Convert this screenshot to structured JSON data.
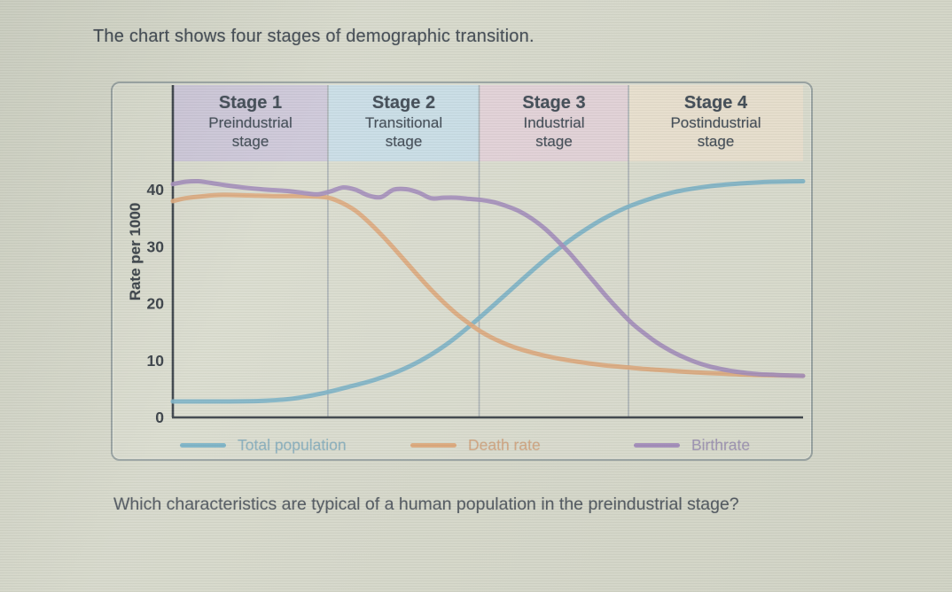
{
  "page": {
    "title": "The chart shows four stages of demographic transition.",
    "question": "Which characteristics are typical of a human population in the preindustrial stage?"
  },
  "chart_data": {
    "type": "line",
    "title": "",
    "xlabel": "",
    "ylabel": "Rate per 1000",
    "ylim": [
      0,
      45
    ],
    "xlim": [
      0,
      100
    ],
    "y_ticks": [
      0,
      10,
      20,
      30,
      40
    ],
    "grid": "vertical stage boundaries only",
    "legend_position": "bottom",
    "stages": [
      {
        "label": "Stage 1",
        "sublabel": "Preindustrial\nstage",
        "color": "#ccc6d8",
        "x_start": 0,
        "x_end": 24.6
      },
      {
        "label": "Stage 2",
        "sublabel": "Transitional\nstage",
        "color": "#c7dce5",
        "x_start": 24.6,
        "x_end": 48.6
      },
      {
        "label": "Stage 3",
        "sublabel": "Industrial\nstage",
        "color": "#e1d0d6",
        "x_start": 48.6,
        "x_end": 72.3
      },
      {
        "label": "Stage 4",
        "sublabel": "Postindustrial\nstage",
        "color": "#e8dfcd",
        "x_start": 72.3,
        "x_end": 100
      }
    ],
    "series": [
      {
        "name": "Total population",
        "color": "#78b0c4",
        "legend_text_color": "#86aebd",
        "points": [
          [
            0,
            2.8
          ],
          [
            8,
            2.8
          ],
          [
            14,
            2.9
          ],
          [
            19,
            3.3
          ],
          [
            24,
            4.3
          ],
          [
            28,
            5.4
          ],
          [
            32,
            6.6
          ],
          [
            36,
            8.2
          ],
          [
            40,
            10.4
          ],
          [
            44,
            13.3
          ],
          [
            48,
            16.9
          ],
          [
            52,
            20.8
          ],
          [
            56,
            24.8
          ],
          [
            60,
            28.6
          ],
          [
            64,
            31.9
          ],
          [
            68,
            34.7
          ],
          [
            72,
            36.9
          ],
          [
            76,
            38.5
          ],
          [
            80,
            39.7
          ],
          [
            85,
            40.6
          ],
          [
            90,
            41.1
          ],
          [
            95,
            41.4
          ],
          [
            100,
            41.5
          ]
        ]
      },
      {
        "name": "Death rate",
        "color": "#dca678",
        "legend_text_color": "#d2a47e",
        "points": [
          [
            0,
            38.0
          ],
          [
            2,
            38.5
          ],
          [
            5,
            38.9
          ],
          [
            8,
            39.1
          ],
          [
            12,
            39.0
          ],
          [
            16,
            38.9
          ],
          [
            20,
            38.9
          ],
          [
            23,
            38.8
          ],
          [
            25,
            38.5
          ],
          [
            27,
            37.6
          ],
          [
            29,
            36.3
          ],
          [
            31,
            34.4
          ],
          [
            33,
            32.2
          ],
          [
            35,
            29.8
          ],
          [
            37,
            27.3
          ],
          [
            39,
            24.8
          ],
          [
            41,
            22.4
          ],
          [
            43,
            20.2
          ],
          [
            45,
            18.2
          ],
          [
            47,
            16.5
          ],
          [
            49,
            15.0
          ],
          [
            51,
            13.8
          ],
          [
            54,
            12.4
          ],
          [
            57,
            11.4
          ],
          [
            60,
            10.6
          ],
          [
            63,
            10.0
          ],
          [
            66,
            9.5
          ],
          [
            69,
            9.1
          ],
          [
            72,
            8.8
          ],
          [
            75,
            8.5
          ],
          [
            79,
            8.2
          ],
          [
            83,
            7.9
          ],
          [
            87,
            7.7
          ],
          [
            91,
            7.5
          ],
          [
            95,
            7.4
          ],
          [
            100,
            7.3
          ]
        ]
      },
      {
        "name": "Birthrate",
        "color": "#a18ab9",
        "legend_text_color": "#9d92b3",
        "points": [
          [
            0,
            41.0
          ],
          [
            2,
            41.4
          ],
          [
            4,
            41.5
          ],
          [
            6,
            41.2
          ],
          [
            9,
            40.7
          ],
          [
            12,
            40.3
          ],
          [
            15,
            40.0
          ],
          [
            18,
            39.8
          ],
          [
            21,
            39.4
          ],
          [
            23,
            39.2
          ],
          [
            25,
            39.7
          ],
          [
            27,
            40.4
          ],
          [
            29,
            40.0
          ],
          [
            31,
            39.0
          ],
          [
            33,
            38.7
          ],
          [
            35,
            40.0
          ],
          [
            37,
            40.1
          ],
          [
            39,
            39.5
          ],
          [
            41,
            38.5
          ],
          [
            43,
            38.6
          ],
          [
            45,
            38.6
          ],
          [
            47,
            38.4
          ],
          [
            49,
            38.2
          ],
          [
            51,
            37.8
          ],
          [
            53,
            37.1
          ],
          [
            55,
            36.2
          ],
          [
            57,
            34.9
          ],
          [
            59,
            33.2
          ],
          [
            61,
            31.1
          ],
          [
            63,
            28.8
          ],
          [
            65,
            26.2
          ],
          [
            67,
            23.6
          ],
          [
            69,
            21.0
          ],
          [
            71,
            18.6
          ],
          [
            73,
            16.4
          ],
          [
            75,
            14.6
          ],
          [
            77,
            13.0
          ],
          [
            79,
            11.7
          ],
          [
            81,
            10.6
          ],
          [
            83,
            9.7
          ],
          [
            85,
            9.0
          ],
          [
            87,
            8.5
          ],
          [
            89,
            8.1
          ],
          [
            91,
            7.8
          ],
          [
            93,
            7.6
          ],
          [
            95,
            7.5
          ],
          [
            97,
            7.4
          ],
          [
            100,
            7.3
          ]
        ]
      }
    ]
  }
}
